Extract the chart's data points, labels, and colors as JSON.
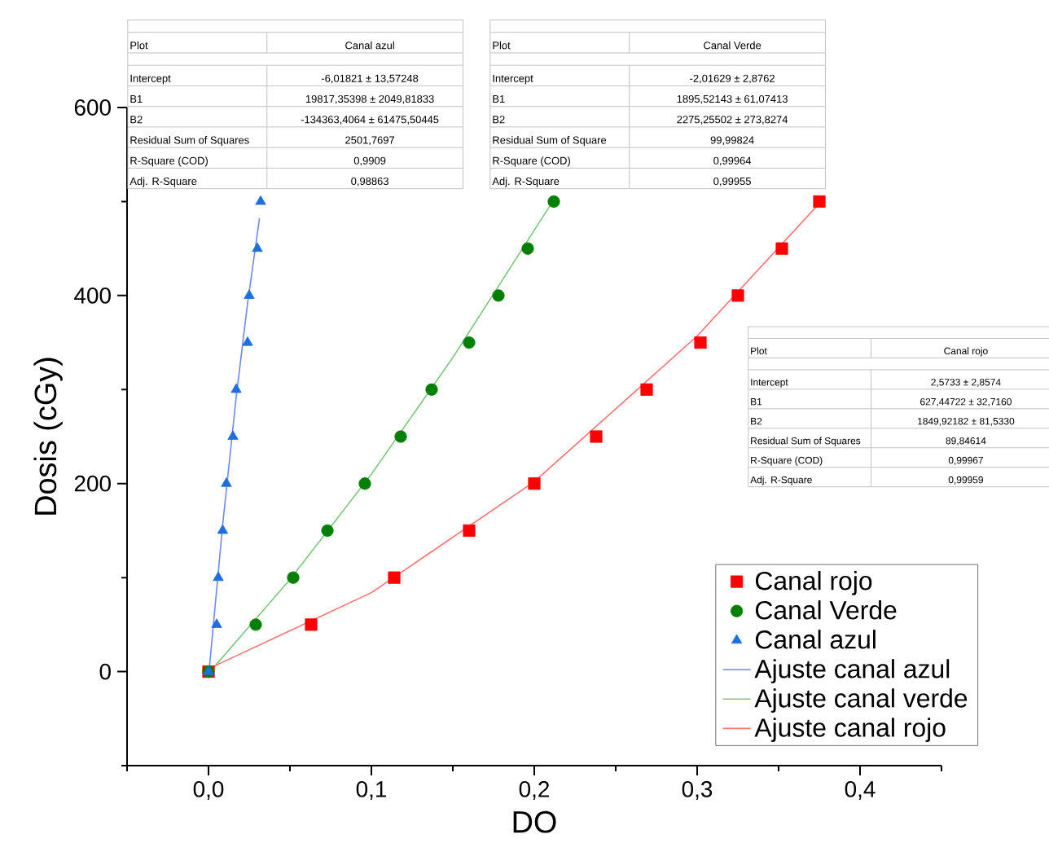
{
  "chart_data": {
    "type": "scatter",
    "xlabel": "DO",
    "ylabel": "Dosis (cGy)",
    "xlim": [
      -0.05,
      0.45
    ],
    "ylim": [
      -100,
      600
    ],
    "xticks": [
      {
        "value": -0.05,
        "label": null
      },
      {
        "value": 0,
        "label": "0,0"
      },
      {
        "value": 0.05,
        "label": null
      },
      {
        "value": 0.1,
        "label": "0,1"
      },
      {
        "value": 0.15,
        "label": null
      },
      {
        "value": 0.2,
        "label": "0,2"
      },
      {
        "value": 0.25,
        "label": null
      },
      {
        "value": 0.3,
        "label": "0,3"
      },
      {
        "value": 0.35,
        "label": null
      },
      {
        "value": 0.4,
        "label": "0,4"
      },
      {
        "value": 0.45,
        "label": null
      }
    ],
    "yticks": [
      {
        "value": -100,
        "label": null
      },
      0,
      {
        "value": 100,
        "label": null
      },
      200,
      {
        "value": 300,
        "label": null
      },
      400,
      {
        "value": 500,
        "label": null
      },
      600
    ],
    "legend": "bottom right",
    "series": [
      {
        "name": "Canal rojo",
        "marker": "square",
        "color": "#ff0000",
        "x": [
          0,
          0.063,
          0.114,
          0.16,
          0.2,
          0.238,
          0.269,
          0.302,
          0.325,
          0.352,
          0.375
        ],
        "values": [
          0,
          50,
          100,
          150,
          200,
          250,
          300,
          350,
          400,
          450,
          500
        ]
      },
      {
        "name": "Canal Verde",
        "marker": "circle",
        "color": "#008000",
        "x": [
          0,
          0.029,
          0.052,
          0.073,
          0.096,
          0.118,
          0.137,
          0.16,
          0.178,
          0.196,
          0.212
        ],
        "values": [
          0,
          50,
          100,
          150,
          200,
          250,
          300,
          350,
          400,
          450,
          500
        ]
      },
      {
        "name": "Canal azul",
        "marker": "triangle",
        "color": "#1e6fdc",
        "x": [
          0,
          0.005,
          0.006,
          0.0087,
          0.011,
          0.015,
          0.017,
          0.024,
          0.025,
          0.03,
          0.032
        ],
        "values": [
          0,
          50,
          100,
          150,
          200,
          250,
          300,
          350,
          400,
          450,
          500
        ]
      },
      {
        "name": "Ajuste canal azul",
        "type": "line",
        "marker": "none",
        "line_style": "solid",
        "color": "#6f86ff",
        "x": [
          0,
          0.0087,
          0.017,
          0.024,
          0.0313
        ],
        "values": [
          -6,
          156,
          292,
          392,
          482
        ]
      },
      {
        "name": "Ajuste canal verde",
        "type": "line",
        "marker": "none",
        "line_style": "solid",
        "color": "#7fc77f",
        "x": [
          0,
          0.05,
          0.1,
          0.15,
          0.212
        ],
        "values": [
          -2,
          98,
          210,
          334,
          502
        ]
      },
      {
        "name": "Ajuste canal rojo",
        "type": "line",
        "marker": "none",
        "line_style": "solid",
        "color": "#ff7070",
        "x": [
          0,
          0.1,
          0.2,
          0.3,
          0.375
        ],
        "values": [
          3,
          84,
          202,
          357,
          498
        ]
      }
    ],
    "annotations": [
      "Plot",
      "Canal azul",
      "Intercept",
      "-6,01821 ± 13,57248",
      "B1",
      "19817,35398 ± 2049,81833",
      "B2",
      "-134363,4064 ± 61475,50445",
      "Residual Sum of Squares",
      "2501,7697",
      "R-Square (COD)",
      "0,9909",
      "Adj. R-Square",
      "0,98863",
      "Plot",
      "Canal Verde",
      "Intercept",
      "-2,01629 ± 2,8762",
      "B1",
      "1895,52143 ± 61,07413",
      "B2",
      "2275,25502 ± 273,8274",
      "Residual Sum of Square",
      "99,99824",
      "R-Square (COD)",
      "0,99964",
      "Adj. R-Square",
      "0,99955",
      "Plot",
      "Canal rojo",
      "Intercept",
      "2,5733 ± 2,8574",
      "B1",
      "627,44722 ± 32,7160",
      "B2",
      "1849,92182 ± 81,5330",
      "Residual Sum of Squares",
      "89,84614",
      "R-Square (COD)",
      "0,99967",
      "Adj. R-Square",
      "0,99959"
    ]
  }
}
